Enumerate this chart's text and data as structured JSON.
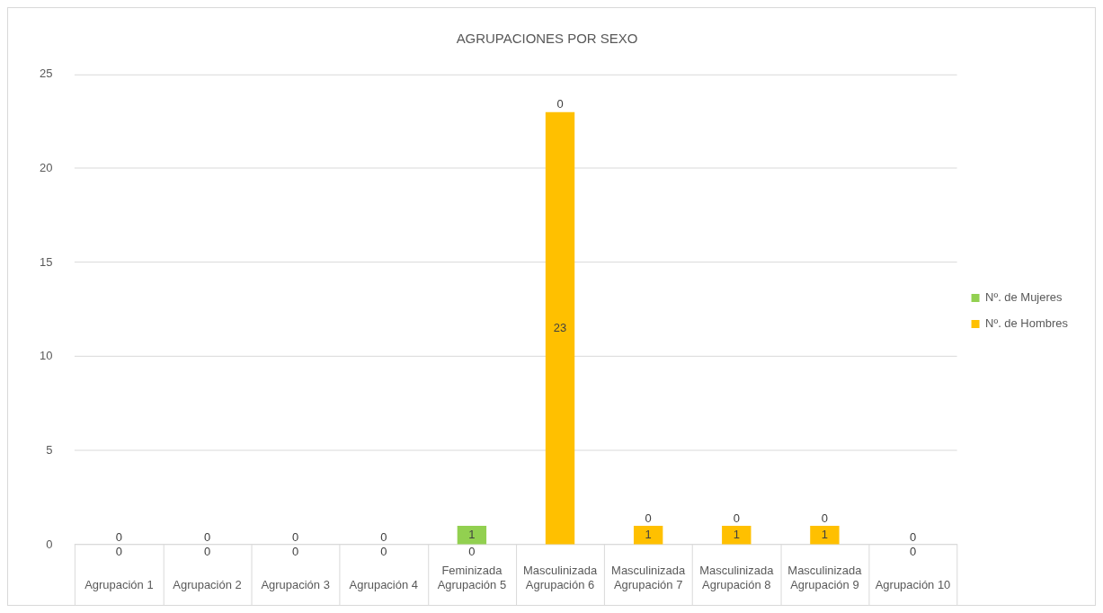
{
  "chart_data": {
    "type": "bar",
    "title": "AGRUPACIONES POR SEXO",
    "categories": [
      "\nAgrupación 1",
      "\nAgrupación 2",
      "\nAgrupación 3",
      "\nAgrupación 4",
      "Feminizada\nAgrupación 5",
      "Masculinizada\nAgrupación 6",
      "Masculinizada\nAgrupación 7",
      "Masculinizada\nAgrupación 8",
      "Masculinizada\nAgrupación 9",
      "\nAgrupación 10"
    ],
    "series": [
      {
        "name": "Nº. de Hombres",
        "color": "#ffc000",
        "values": [
          0,
          0,
          0,
          0,
          0,
          23,
          1,
          1,
          1,
          0
        ]
      },
      {
        "name": "Nº. de Mujeres",
        "color": "#92d050",
        "values": [
          0,
          0,
          0,
          0,
          1,
          0,
          0,
          0,
          0,
          0
        ]
      }
    ],
    "stacked": true,
    "ylim": [
      0,
      25
    ],
    "yticks": [
      0,
      5,
      10,
      15,
      20,
      25
    ],
    "grid": "y",
    "legend": "right",
    "data_labels": true
  }
}
